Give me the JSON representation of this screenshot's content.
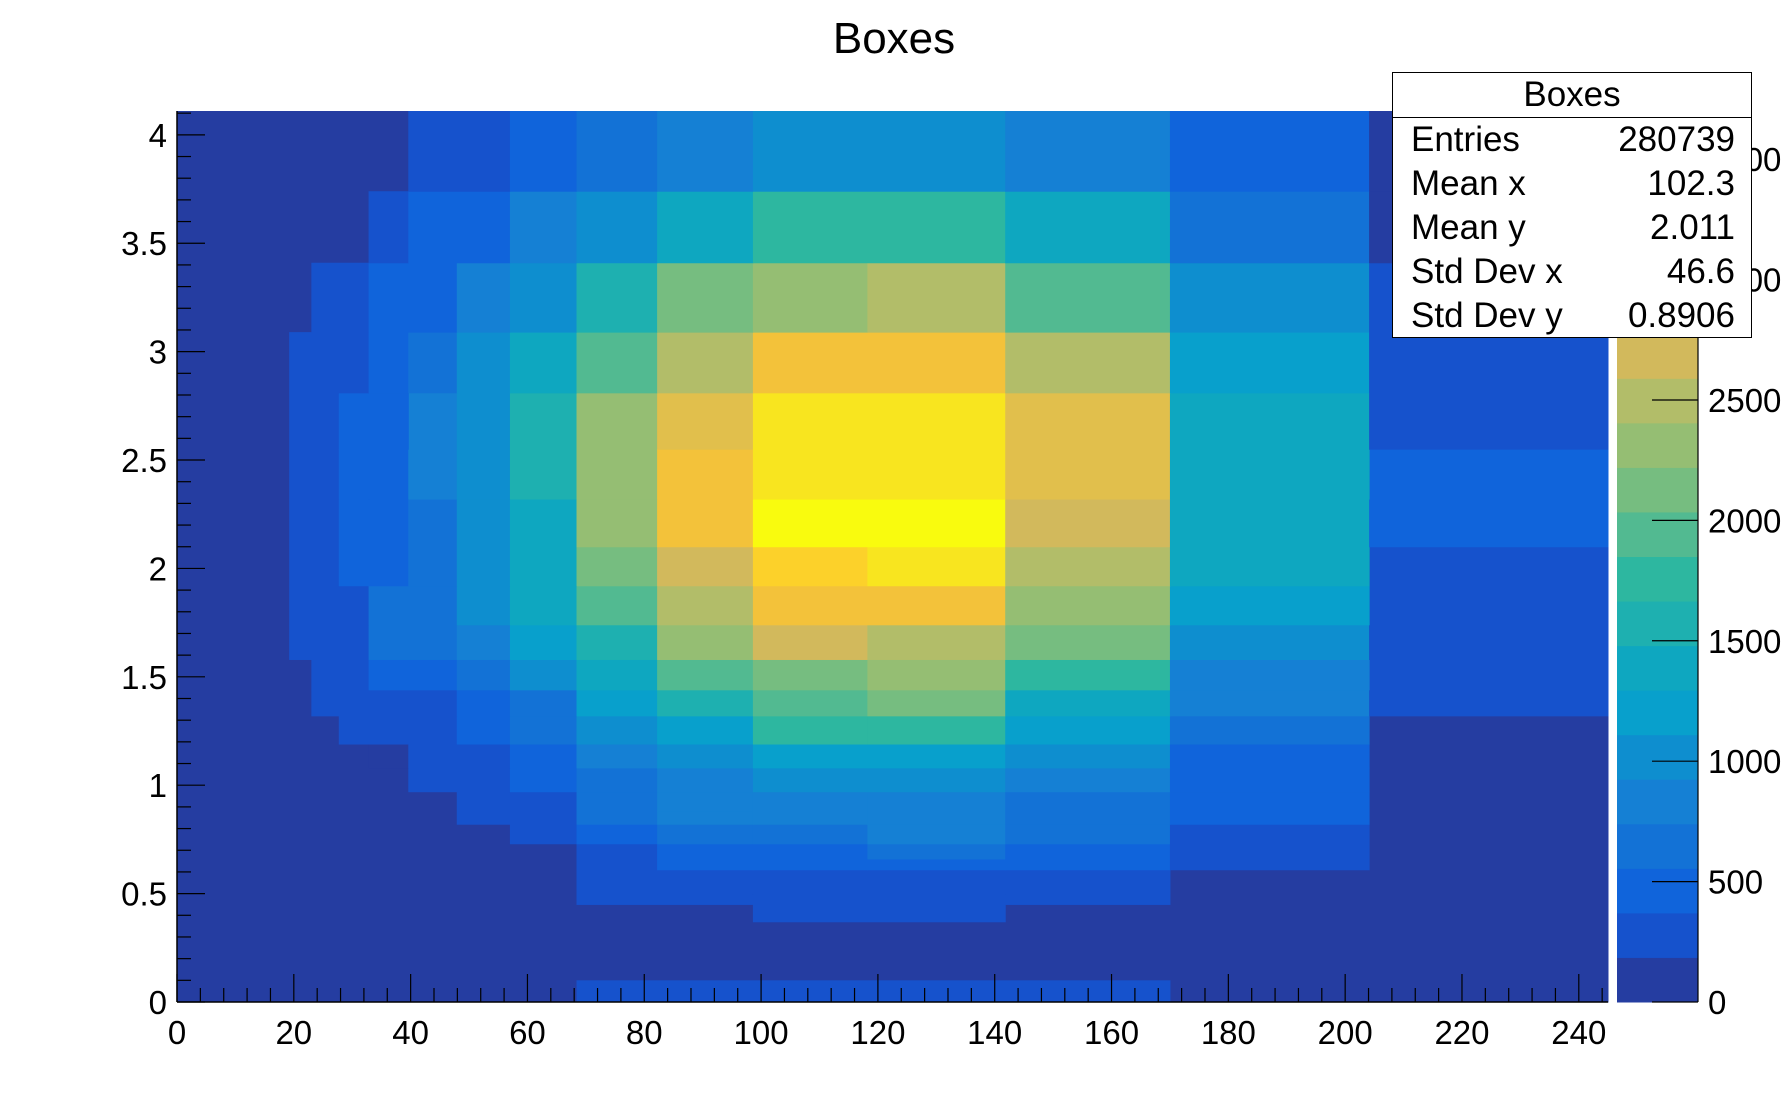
{
  "chart_data": {
    "type": "heatmap",
    "title": "Boxes",
    "xlabel": "",
    "ylabel": "",
    "xlim": [
      0,
      245
    ],
    "ylim": [
      0,
      4.11
    ],
    "x_ticks": [
      0,
      20,
      40,
      60,
      80,
      100,
      120,
      140,
      160,
      180,
      200,
      220,
      240
    ],
    "y_ticks": [
      "0",
      "0.5",
      "1",
      "1.5",
      "2",
      "2.5",
      "3",
      "3.5",
      "4"
    ],
    "y_tick_values": [
      0,
      0.5,
      1,
      1.5,
      2,
      2.5,
      3,
      3.5,
      4
    ],
    "colorbar": {
      "min": 0,
      "max": 3700,
      "ticks": [
        0,
        500,
        1000,
        1500,
        2000,
        2500,
        3000,
        3500
      ],
      "tick_labels_visible": [
        "0",
        "500",
        "1000",
        "1500",
        "2000",
        "2500"
      ],
      "palette": [
        "#253da1",
        "#1652cc",
        "#1064db",
        "#1372d6",
        "#1580d4",
        "#0e8ecf",
        "#08a0cc",
        "#0ea7c0",
        "#1eb0b0",
        "#2db7a0",
        "#52ba91",
        "#76bd80",
        "#95be73",
        "#b2bd69",
        "#d2b95c",
        "#e1bf4c",
        "#f3c23a",
        "#fcd12a",
        "#f8e51f",
        "#f9fb0e"
      ]
    },
    "cells_note": "rects: [x0, x1, y0, y1, palette_index] in data units",
    "rects": [
      [
        0,
        245,
        0,
        4.11,
        0
      ],
      [
        68.4,
        170,
        0,
        0.1,
        1
      ],
      [
        68.4,
        98.6,
        0.45,
        0.5,
        1
      ],
      [
        98.6,
        141.8,
        0.37,
        0.5,
        1
      ],
      [
        141.8,
        170,
        0.45,
        0.5,
        1
      ],
      [
        68.4,
        82.2,
        0.5,
        0.73,
        1
      ],
      [
        82.2,
        98.6,
        0.5,
        0.61,
        1
      ],
      [
        98.6,
        141.8,
        0.5,
        0.61,
        1
      ],
      [
        141.8,
        170,
        0.5,
        0.61,
        1
      ],
      [
        82.2,
        98.6,
        0.61,
        0.73,
        2
      ],
      [
        98.6,
        118.2,
        0.61,
        0.73,
        2
      ],
      [
        118.2,
        141.8,
        0.61,
        0.66,
        2
      ],
      [
        118.2,
        141.8,
        0.66,
        0.73,
        3
      ],
      [
        141.8,
        170,
        0.61,
        0.73,
        2
      ],
      [
        57.0,
        68.4,
        0.73,
        0.82,
        1
      ],
      [
        68.4,
        82.2,
        0.73,
        0.82,
        2
      ],
      [
        82.2,
        98.6,
        0.73,
        0.82,
        3
      ],
      [
        98.6,
        118.2,
        0.73,
        0.82,
        3
      ],
      [
        118.2,
        141.8,
        0.73,
        0.82,
        4
      ],
      [
        141.8,
        170,
        0.73,
        0.82,
        3
      ],
      [
        170,
        204.1,
        0.61,
        0.82,
        1
      ],
      [
        47.9,
        57.0,
        0.82,
        0.97,
        1
      ],
      [
        57.0,
        68.4,
        0.82,
        0.97,
        1
      ],
      [
        68.4,
        82.2,
        0.82,
        0.97,
        3
      ],
      [
        82.2,
        98.6,
        0.82,
        0.88,
        4
      ],
      [
        82.2,
        98.6,
        0.88,
        0.97,
        4
      ],
      [
        98.6,
        118.2,
        0.82,
        0.97,
        4
      ],
      [
        118.2,
        141.8,
        0.82,
        0.97,
        4
      ],
      [
        141.8,
        170,
        0.82,
        0.97,
        3
      ],
      [
        170,
        204.1,
        0.82,
        0.97,
        2
      ],
      [
        39.6,
        47.9,
        0.97,
        1.08,
        1
      ],
      [
        47.9,
        57.0,
        0.97,
        1.08,
        1
      ],
      [
        57.0,
        68.4,
        0.97,
        1.08,
        2
      ],
      [
        68.4,
        82.2,
        0.97,
        1.08,
        3
      ],
      [
        82.2,
        98.6,
        0.97,
        1.08,
        4
      ],
      [
        98.6,
        118.2,
        0.97,
        1.08,
        5
      ],
      [
        118.2,
        141.8,
        0.97,
        1.08,
        5
      ],
      [
        141.8,
        170,
        0.97,
        1.08,
        4
      ],
      [
        170,
        204.1,
        0.97,
        1.08,
        2
      ],
      [
        32.8,
        39.6,
        1.08,
        1.19,
        0
      ],
      [
        39.6,
        47.9,
        1.08,
        1.19,
        1
      ],
      [
        47.9,
        57.0,
        1.08,
        1.19,
        1
      ],
      [
        57.0,
        68.4,
        1.08,
        1.19,
        2
      ],
      [
        68.4,
        82.2,
        1.08,
        1.19,
        4
      ],
      [
        82.2,
        98.6,
        1.08,
        1.19,
        5
      ],
      [
        98.6,
        118.2,
        1.08,
        1.19,
        6
      ],
      [
        118.2,
        141.8,
        1.08,
        1.19,
        6
      ],
      [
        141.8,
        170,
        1.08,
        1.19,
        5
      ],
      [
        170,
        204.1,
        1.08,
        1.19,
        2
      ],
      [
        27.7,
        39.6,
        1.19,
        1.32,
        1
      ],
      [
        39.6,
        47.9,
        1.19,
        1.32,
        1
      ],
      [
        47.9,
        57.0,
        1.19,
        1.32,
        2
      ],
      [
        57.0,
        68.4,
        1.19,
        1.32,
        3
      ],
      [
        68.4,
        82.2,
        1.19,
        1.32,
        5
      ],
      [
        82.2,
        98.6,
        1.19,
        1.32,
        6
      ],
      [
        98.6,
        118.2,
        1.19,
        1.32,
        9
      ],
      [
        118.2,
        141.8,
        1.19,
        1.32,
        9
      ],
      [
        141.8,
        170,
        1.19,
        1.32,
        6
      ],
      [
        170,
        204.1,
        1.19,
        1.32,
        3
      ],
      [
        23.0,
        32.8,
        1.32,
        1.44,
        1
      ],
      [
        32.8,
        47.9,
        1.32,
        1.44,
        1
      ],
      [
        47.9,
        57.0,
        1.32,
        1.44,
        2
      ],
      [
        57.0,
        68.4,
        1.32,
        1.44,
        3
      ],
      [
        68.4,
        82.2,
        1.32,
        1.44,
        6
      ],
      [
        82.2,
        98.6,
        1.32,
        1.44,
        8
      ],
      [
        98.6,
        118.2,
        1.32,
        1.44,
        10
      ],
      [
        118.2,
        141.8,
        1.32,
        1.44,
        11
      ],
      [
        141.8,
        170,
        1.32,
        1.44,
        7
      ],
      [
        170,
        204.1,
        1.32,
        1.44,
        4
      ],
      [
        204.1,
        245,
        1.32,
        1.58,
        1
      ],
      [
        23.0,
        32.8,
        1.44,
        1.58,
        1
      ],
      [
        32.8,
        47.9,
        1.44,
        1.58,
        2
      ],
      [
        47.9,
        57.0,
        1.44,
        1.58,
        3
      ],
      [
        57.0,
        68.4,
        1.44,
        1.58,
        5
      ],
      [
        68.4,
        82.2,
        1.44,
        1.58,
        7
      ],
      [
        82.2,
        98.6,
        1.44,
        1.58,
        10
      ],
      [
        98.6,
        118.2,
        1.44,
        1.58,
        11
      ],
      [
        118.2,
        141.8,
        1.44,
        1.58,
        12
      ],
      [
        141.8,
        170,
        1.44,
        1.58,
        9
      ],
      [
        170,
        204.1,
        1.44,
        1.58,
        4
      ],
      [
        19.2,
        32.8,
        1.58,
        1.74,
        1
      ],
      [
        32.8,
        47.9,
        1.58,
        1.74,
        3
      ],
      [
        47.9,
        57.0,
        1.58,
        1.74,
        4
      ],
      [
        57.0,
        68.4,
        1.58,
        1.74,
        6
      ],
      [
        68.4,
        82.2,
        1.58,
        1.74,
        8
      ],
      [
        82.2,
        98.6,
        1.58,
        1.74,
        12
      ],
      [
        98.6,
        118.2,
        1.58,
        1.74,
        14
      ],
      [
        118.2,
        141.8,
        1.58,
        1.74,
        13
      ],
      [
        141.8,
        170,
        1.58,
        1.74,
        11
      ],
      [
        170,
        204.1,
        1.58,
        1.74,
        5
      ],
      [
        204.1,
        245,
        1.58,
        2.1,
        1
      ],
      [
        19.2,
        32.8,
        1.74,
        1.92,
        1
      ],
      [
        32.8,
        47.9,
        1.74,
        1.92,
        3
      ],
      [
        47.9,
        57.0,
        1.74,
        1.92,
        5
      ],
      [
        57.0,
        68.4,
        1.74,
        1.92,
        7
      ],
      [
        68.4,
        82.2,
        1.74,
        1.92,
        10
      ],
      [
        82.2,
        98.6,
        1.74,
        1.92,
        13
      ],
      [
        98.6,
        141.8,
        1.74,
        1.92,
        16
      ],
      [
        141.8,
        170,
        1.74,
        1.92,
        12
      ],
      [
        170,
        204.1,
        1.74,
        1.92,
        6
      ],
      [
        19.2,
        27.7,
        1.92,
        2.32,
        1
      ],
      [
        27.7,
        39.6,
        1.92,
        2.32,
        2
      ],
      [
        39.6,
        47.9,
        1.92,
        2.32,
        3
      ],
      [
        47.9,
        57.0,
        1.92,
        2.32,
        5
      ],
      [
        57.0,
        68.4,
        1.92,
        2.32,
        7
      ],
      [
        68.4,
        82.2,
        1.92,
        2.1,
        11
      ],
      [
        68.4,
        82.2,
        2.1,
        2.32,
        12
      ],
      [
        82.2,
        98.6,
        1.92,
        2.1,
        14
      ],
      [
        82.2,
        98.6,
        2.1,
        2.32,
        16
      ],
      [
        98.6,
        118.2,
        1.92,
        2.1,
        17
      ],
      [
        118.2,
        141.8,
        1.92,
        2.1,
        18
      ],
      [
        98.6,
        141.8,
        2.1,
        2.32,
        19
      ],
      [
        141.8,
        170,
        1.92,
        2.1,
        13
      ],
      [
        141.8,
        170,
        2.1,
        2.32,
        14
      ],
      [
        170,
        204.1,
        1.92,
        2.32,
        7
      ],
      [
        204.1,
        245,
        2.1,
        2.55,
        2
      ],
      [
        19.2,
        27.7,
        2.32,
        2.81,
        1
      ],
      [
        27.7,
        32.8,
        2.32,
        2.55,
        2
      ],
      [
        32.8,
        39.6,
        2.32,
        2.55,
        2
      ],
      [
        39.6,
        47.9,
        2.32,
        2.81,
        4
      ],
      [
        47.9,
        57.0,
        2.32,
        2.81,
        5
      ],
      [
        57.0,
        68.4,
        2.32,
        2.81,
        8
      ],
      [
        68.4,
        82.2,
        2.32,
        2.81,
        12
      ],
      [
        82.2,
        98.6,
        2.32,
        2.55,
        16
      ],
      [
        82.2,
        98.6,
        2.55,
        2.81,
        15
      ],
      [
        98.6,
        141.8,
        2.32,
        2.81,
        18
      ],
      [
        141.8,
        170,
        2.32,
        2.81,
        15
      ],
      [
        170,
        204.1,
        2.32,
        2.81,
        7
      ],
      [
        27.7,
        32.8,
        2.55,
        2.81,
        2
      ],
      [
        32.8,
        39.6,
        2.55,
        2.81,
        2
      ],
      [
        204.1,
        245,
        2.55,
        2.81,
        1
      ],
      [
        19.2,
        32.8,
        2.81,
        3.09,
        1
      ],
      [
        32.8,
        39.6,
        2.81,
        3.09,
        2
      ],
      [
        39.6,
        47.9,
        2.81,
        3.09,
        3
      ],
      [
        47.9,
        57.0,
        2.81,
        3.09,
        5
      ],
      [
        57.0,
        68.4,
        2.81,
        3.09,
        7
      ],
      [
        68.4,
        82.2,
        2.81,
        3.09,
        10
      ],
      [
        82.2,
        98.6,
        2.81,
        3.09,
        13
      ],
      [
        98.6,
        141.8,
        2.81,
        3.09,
        16
      ],
      [
        141.8,
        170,
        2.81,
        3.09,
        13
      ],
      [
        170,
        204.1,
        2.81,
        3.09,
        6
      ],
      [
        204.1,
        245,
        2.81,
        3.09,
        1
      ],
      [
        23.0,
        32.8,
        3.09,
        3.41,
        1
      ],
      [
        32.8,
        47.9,
        3.09,
        3.41,
        2
      ],
      [
        47.9,
        57.0,
        3.09,
        3.41,
        4
      ],
      [
        57.0,
        68.4,
        3.09,
        3.41,
        5
      ],
      [
        68.4,
        82.2,
        3.09,
        3.41,
        8
      ],
      [
        82.2,
        98.6,
        3.09,
        3.41,
        11
      ],
      [
        98.6,
        118.2,
        3.09,
        3.41,
        12
      ],
      [
        118.2,
        141.8,
        3.09,
        3.41,
        13
      ],
      [
        141.8,
        170,
        3.09,
        3.41,
        10
      ],
      [
        170,
        204.1,
        3.09,
        3.41,
        5
      ],
      [
        204.1,
        245,
        3.09,
        3.41,
        1
      ],
      [
        32.8,
        39.6,
        3.41,
        3.74,
        1
      ],
      [
        39.6,
        57.0,
        3.41,
        3.74,
        2
      ],
      [
        57.0,
        68.4,
        3.41,
        3.74,
        4
      ],
      [
        68.4,
        82.2,
        3.41,
        3.74,
        5
      ],
      [
        82.2,
        98.6,
        3.41,
        3.74,
        7
      ],
      [
        98.6,
        141.8,
        3.41,
        3.74,
        9
      ],
      [
        141.8,
        170,
        3.41,
        3.74,
        7
      ],
      [
        170,
        204.1,
        3.41,
        3.74,
        3
      ],
      [
        204.1,
        245,
        3.41,
        3.74,
        0
      ],
      [
        39.6,
        57.0,
        3.74,
        4.11,
        1
      ],
      [
        57.0,
        68.4,
        3.74,
        4.11,
        2
      ],
      [
        68.4,
        82.2,
        3.74,
        4.11,
        3
      ],
      [
        82.2,
        98.6,
        3.74,
        4.11,
        4
      ],
      [
        98.6,
        141.8,
        3.74,
        4.11,
        5
      ],
      [
        141.8,
        170,
        3.74,
        4.11,
        4
      ],
      [
        170,
        204.1,
        3.74,
        4.11,
        2
      ],
      [
        204.1,
        245,
        3.74,
        4.11,
        0
      ]
    ]
  },
  "stats_box": {
    "title": "Boxes",
    "rows": [
      {
        "label": "Entries",
        "value": "280739"
      },
      {
        "label": "Mean x",
        "value": "102.3"
      },
      {
        "label": "Mean y",
        "value": "2.011"
      },
      {
        "label": "Std Dev x",
        "value": "46.6"
      },
      {
        "label": "Std Dev y",
        "value": "0.8906"
      }
    ]
  }
}
